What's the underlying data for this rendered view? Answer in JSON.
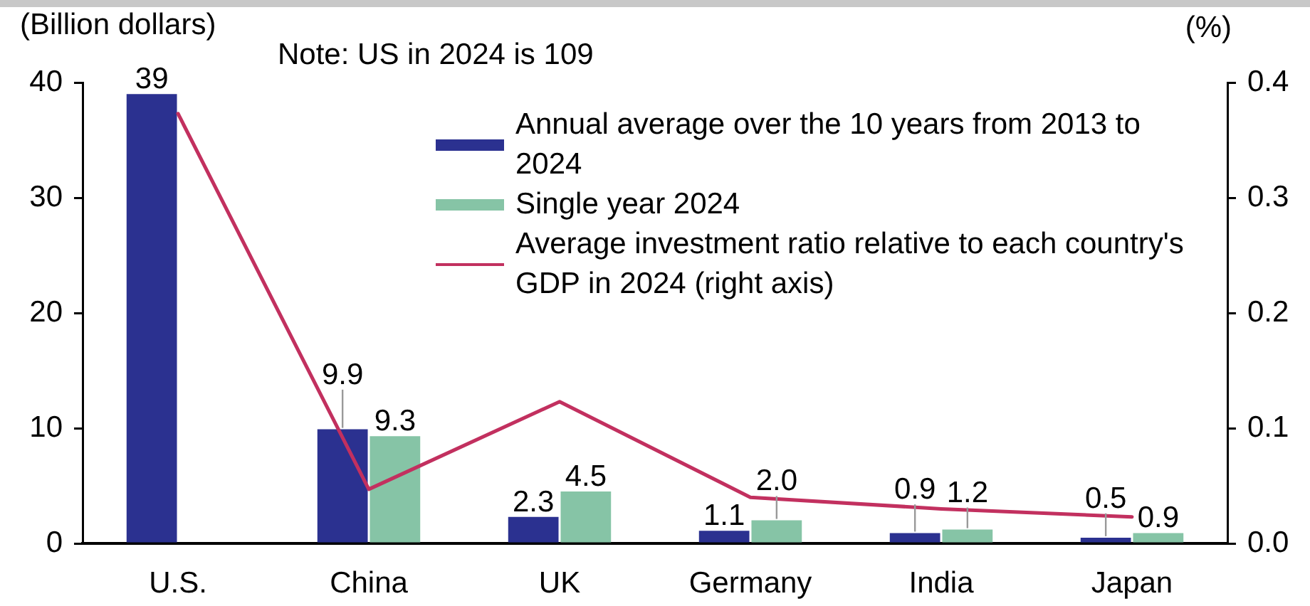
{
  "chart_data": {
    "type": "bar",
    "ylabel": "(Billion dollars)",
    "y2label": "(%)",
    "annotations": [
      "Note: US in 2024 is 109"
    ],
    "categories": [
      "U.S.",
      "China",
      "UK",
      "Germany",
      "India",
      "Japan"
    ],
    "series": [
      {
        "name": "Annual average over the 10 years from 2013 to 2024",
        "color": "#2b3190",
        "values": [
          39,
          9.9,
          2.3,
          1.1,
          0.9,
          0.5
        ],
        "value_labels": [
          "39",
          "9.9",
          "2.3",
          "1.1",
          "0.9",
          "0.5"
        ]
      },
      {
        "name": "Single year 2024",
        "color": "#86c4a6",
        "values": [
          null,
          9.3,
          4.5,
          2.0,
          1.2,
          0.9
        ],
        "value_labels": [
          null,
          "9.3",
          "4.5",
          "2.0",
          "1.2",
          "0.9"
        ]
      },
      {
        "name": "Average investment ratio relative to each country's GDP in 2024 (right axis)",
        "type": "line",
        "axis": "y2",
        "color": "#c2305f",
        "values": [
          0.373,
          0.047,
          0.123,
          0.04,
          0.03,
          0.023
        ],
        "marker": "none",
        "line_style": "solid"
      }
    ],
    "ylim": [
      0,
      40
    ],
    "yticks": [
      0,
      10,
      20,
      30,
      40
    ],
    "y2lim": [
      0,
      0.4
    ],
    "y2ticks": [
      {
        "value": 0,
        "label": "0.0"
      },
      0.1,
      0.2,
      0.3,
      0.4
    ],
    "legend": "top right"
  }
}
